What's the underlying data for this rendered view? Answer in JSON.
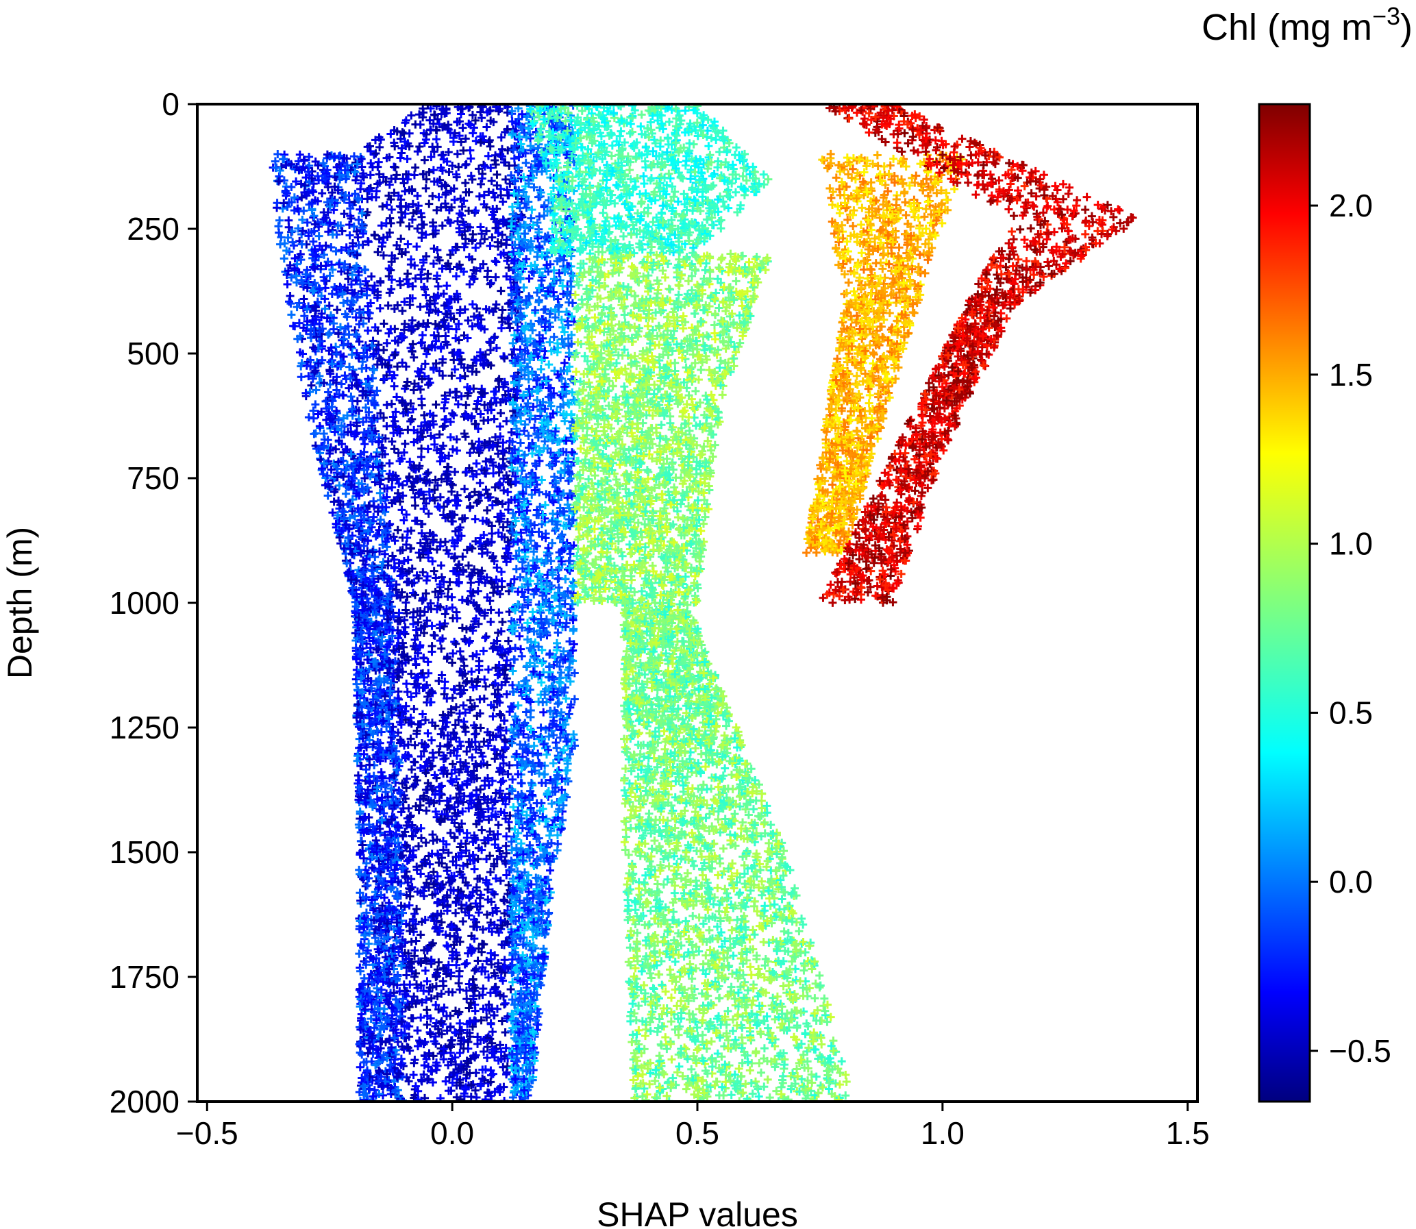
{
  "chart_data": {
    "type": "scatter",
    "marker": "+",
    "xlabel": "SHAP values",
    "ylabel": "Depth (m)",
    "xlim": [
      -0.52,
      1.52
    ],
    "ylim": [
      2000,
      0
    ],
    "y_inverted": true,
    "xticks": [
      -0.5,
      0.0,
      0.5,
      1.0,
      1.5
    ],
    "xtick_labels": [
      "−0.5",
      "0.0",
      "0.5",
      "1.0",
      "1.5"
    ],
    "yticks": [
      0,
      250,
      500,
      750,
      1000,
      1250,
      1500,
      1750,
      2000
    ],
    "ytick_labels": [
      "0",
      "250",
      "500",
      "750",
      "1000",
      "1250",
      "1500",
      "1750",
      "2000"
    ],
    "colorbar": {
      "title": "Chl (mg m",
      "title_superscript": "−3",
      "title_close": ")",
      "colormap": "jet",
      "range": [
        -0.65,
        2.3
      ],
      "ticks": [
        -0.5,
        0.0,
        0.5,
        1.0,
        1.5,
        2.0
      ],
      "tick_labels": [
        "−0.5",
        "0.0",
        "0.5",
        "1.0",
        "1.5",
        "2.0"
      ]
    },
    "groups": [
      {
        "description": "dense core band",
        "chl_range": [
          -0.6,
          -0.25
        ],
        "profile": [
          {
            "depth": 0,
            "x_min": -0.05,
            "x_max": 0.12
          },
          {
            "depth": 100,
            "x_min": -0.2,
            "x_max": 0.15
          },
          {
            "depth": 300,
            "x_min": -0.18,
            "x_max": 0.15
          },
          {
            "depth": 600,
            "x_min": -0.15,
            "x_max": 0.14
          },
          {
            "depth": 1000,
            "x_min": -0.12,
            "x_max": 0.12
          },
          {
            "depth": 1500,
            "x_min": -0.1,
            "x_max": 0.12
          },
          {
            "depth": 2000,
            "x_min": -0.1,
            "x_max": 0.12
          }
        ]
      },
      {
        "description": "blue left fringe",
        "chl_range": [
          -0.5,
          0.1
        ],
        "profile": [
          {
            "depth": 100,
            "x_min": -0.37,
            "x_max": -0.18
          },
          {
            "depth": 300,
            "x_min": -0.35,
            "x_max": -0.18
          },
          {
            "depth": 600,
            "x_min": -0.3,
            "x_max": -0.15
          },
          {
            "depth": 1000,
            "x_min": -0.2,
            "x_max": -0.12
          },
          {
            "depth": 1500,
            "x_min": -0.19,
            "x_max": -0.1
          },
          {
            "depth": 2000,
            "x_min": -0.19,
            "x_max": -0.1
          }
        ]
      },
      {
        "description": "blue right fringe",
        "chl_range": [
          -0.3,
          0.35
        ],
        "profile": [
          {
            "depth": 0,
            "x_min": 0.12,
            "x_max": 0.25
          },
          {
            "depth": 300,
            "x_min": 0.12,
            "x_max": 0.25
          },
          {
            "depth": 1000,
            "x_min": 0.12,
            "x_max": 0.25
          },
          {
            "depth": 1300,
            "x_min": 0.12,
            "x_max": 0.25
          },
          {
            "depth": 1600,
            "x_min": 0.12,
            "x_max": 0.2
          },
          {
            "depth": 2000,
            "x_min": 0.12,
            "x_max": 0.16
          }
        ]
      },
      {
        "description": "cyan near-surface fan",
        "chl_range": [
          0.4,
          0.8
        ],
        "profile": [
          {
            "depth": 0,
            "x_min": 0.15,
            "x_max": 0.5
          },
          {
            "depth": 150,
            "x_min": 0.2,
            "x_max": 0.65
          },
          {
            "depth": 300,
            "x_min": 0.2,
            "x_max": 0.5
          }
        ]
      },
      {
        "description": "green mid-depth cloud",
        "chl_range": [
          0.6,
          1.1
        ],
        "profile": [
          {
            "depth": 300,
            "x_min": 0.25,
            "x_max": 0.65
          },
          {
            "depth": 600,
            "x_min": 0.25,
            "x_max": 0.55
          },
          {
            "depth": 1000,
            "x_min": 0.25,
            "x_max": 0.5
          }
        ]
      },
      {
        "description": "green deep diagonal",
        "chl_range": [
          0.55,
          1.05
        ],
        "profile": [
          {
            "depth": 1000,
            "x_min": 0.35,
            "x_max": 0.48
          },
          {
            "depth": 1500,
            "x_min": 0.35,
            "x_max": 0.68
          },
          {
            "depth": 2000,
            "x_min": 0.37,
            "x_max": 0.82
          }
        ]
      },
      {
        "description": "yellow arc",
        "chl_range": [
          1.2,
          1.6
        ],
        "profile": [
          {
            "depth": 100,
            "x_min": 0.75,
            "x_max": 1.05
          },
          {
            "depth": 400,
            "x_min": 0.8,
            "x_max": 0.95
          },
          {
            "depth": 900,
            "x_min": 0.72,
            "x_max": 0.8
          }
        ]
      },
      {
        "description": "red V-shaped profile",
        "chl_range": [
          1.8,
          2.3
        ],
        "profile": [
          {
            "depth": 0,
            "x_min": 0.75,
            "x_max": 0.9
          },
          {
            "depth": 230,
            "x_min": 1.15,
            "x_max": 1.4
          },
          {
            "depth": 400,
            "x_min": 1.05,
            "x_max": 1.15
          },
          {
            "depth": 700,
            "x_min": 0.9,
            "x_max": 1.0
          },
          {
            "depth": 1000,
            "x_min": 0.75,
            "x_max": 0.9
          }
        ]
      }
    ]
  }
}
